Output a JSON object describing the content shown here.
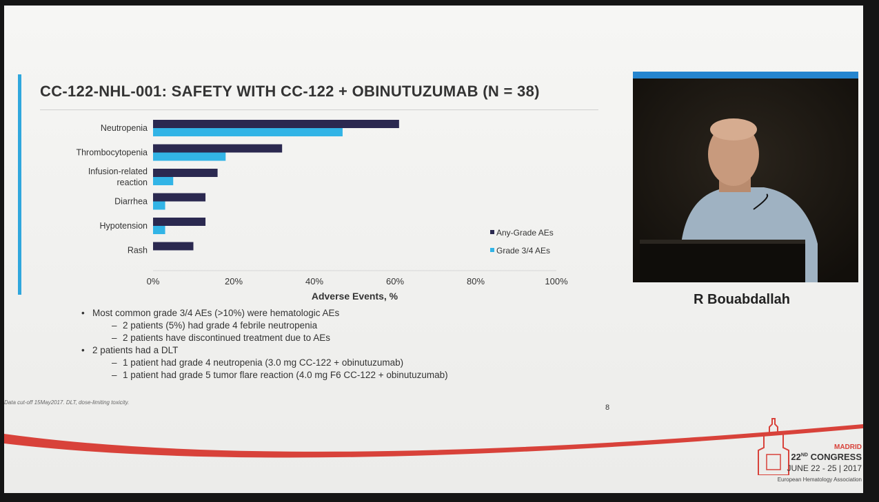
{
  "slide": {
    "title": "CC-122-NHL-001: SAFETY WITH CC-122 + OBINUTUZUMAB (N = 38)",
    "bullets": [
      {
        "level": 1,
        "text": "Most common grade 3/4 AEs (>10%) were hematologic AEs"
      },
      {
        "level": 2,
        "text": "2 patients (5%) had grade 4 febrile neutropenia"
      },
      {
        "level": 2,
        "text": "2 patients have discontinued treatment due to AEs"
      },
      {
        "level": 1,
        "text": "2 patients had a DLT"
      },
      {
        "level": 2,
        "text": "1 patient had grade 4 neutropenia (3.0 mg CC-122 + obinutuzumab)"
      },
      {
        "level": 2,
        "text": "1 patient had grade 5 tumor flare reaction (4.0 mg F6 CC-122 + obinutuzumab)"
      }
    ],
    "footnote": "Data cut-off 15May2017. DLT, dose-limiting toxicity.",
    "page_number": "8",
    "speaker_name": "R Bouabdallah"
  },
  "congress": {
    "city": "MADRID",
    "name_prefix": "22",
    "name_suffix": "ND",
    "name_rest": "CONGRESS",
    "dates": "JUNE 22 - 25 | 2017",
    "association": "European Hematology Association"
  },
  "colors": {
    "any_grade": "#2b2950",
    "grade34": "#32b4e6",
    "accent": "#2fa7dd",
    "swoosh": "#d8423a"
  },
  "chart_data": {
    "type": "bar",
    "orientation": "horizontal",
    "categories": [
      [
        "Neutropenia"
      ],
      [
        "Thrombocytopenia"
      ],
      [
        "Infusion-related",
        "reaction"
      ],
      [
        "Diarrhea"
      ],
      [
        "Hypotension"
      ],
      [
        "Rash"
      ]
    ],
    "series": [
      {
        "name": "Any-Grade AEs",
        "values": [
          61,
          32,
          16,
          13,
          13,
          10
        ]
      },
      {
        "name": "Grade 3/4 AEs",
        "values": [
          47,
          18,
          5,
          3,
          3,
          0
        ]
      }
    ],
    "xlabel": "Adverse Events, %",
    "xlim": [
      0,
      100
    ],
    "xticks": [
      "0%",
      "20%",
      "40%",
      "60%",
      "80%",
      "100%"
    ],
    "legend_position": "bottom-right",
    "grid": false
  }
}
